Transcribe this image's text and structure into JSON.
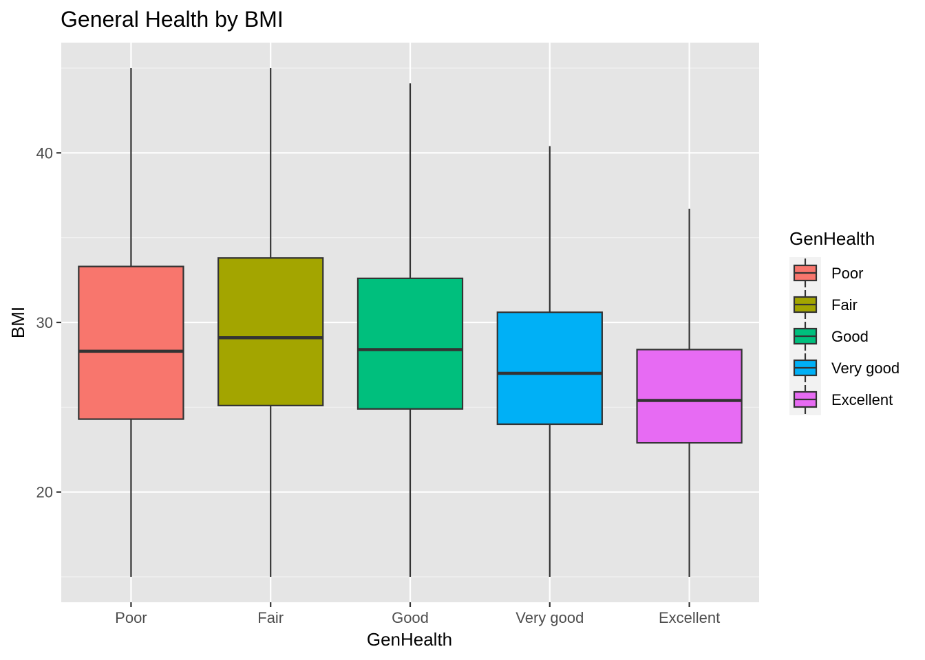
{
  "chart_data": {
    "type": "boxplot",
    "title": "General Health by BMI",
    "xlabel": "GenHealth",
    "ylabel": "BMI",
    "categories": [
      "Poor",
      "Fair",
      "Good",
      "Very good",
      "Excellent"
    ],
    "colors": [
      "#F8766D",
      "#A3A500",
      "#00BF7D",
      "#00B0F6",
      "#E76BF3"
    ],
    "boxes": [
      {
        "name": "Poor",
        "lower_whisker": 15.0,
        "q1": 24.3,
        "median": 28.3,
        "q3": 33.3,
        "upper_whisker": 45.0
      },
      {
        "name": "Fair",
        "lower_whisker": 15.0,
        "q1": 25.1,
        "median": 29.1,
        "q3": 33.8,
        "upper_whisker": 45.0
      },
      {
        "name": "Good",
        "lower_whisker": 15.0,
        "q1": 24.9,
        "median": 28.4,
        "q3": 32.6,
        "upper_whisker": 44.1
      },
      {
        "name": "Very good",
        "lower_whisker": 15.0,
        "q1": 24.0,
        "median": 27.0,
        "q3": 30.6,
        "upper_whisker": 40.4
      },
      {
        "name": "Excellent",
        "lower_whisker": 15.0,
        "q1": 22.9,
        "median": 25.4,
        "q3": 28.4,
        "upper_whisker": 36.7
      }
    ],
    "ylim": [
      13.5,
      46.5
    ],
    "yticks": [
      20,
      30,
      40
    ],
    "ytick_labels": [
      "20",
      "30",
      "40"
    ],
    "grid": true,
    "legend": {
      "title": "GenHealth",
      "position": "right",
      "entries": [
        "Poor",
        "Fair",
        "Good",
        "Very good",
        "Excellent"
      ]
    }
  }
}
